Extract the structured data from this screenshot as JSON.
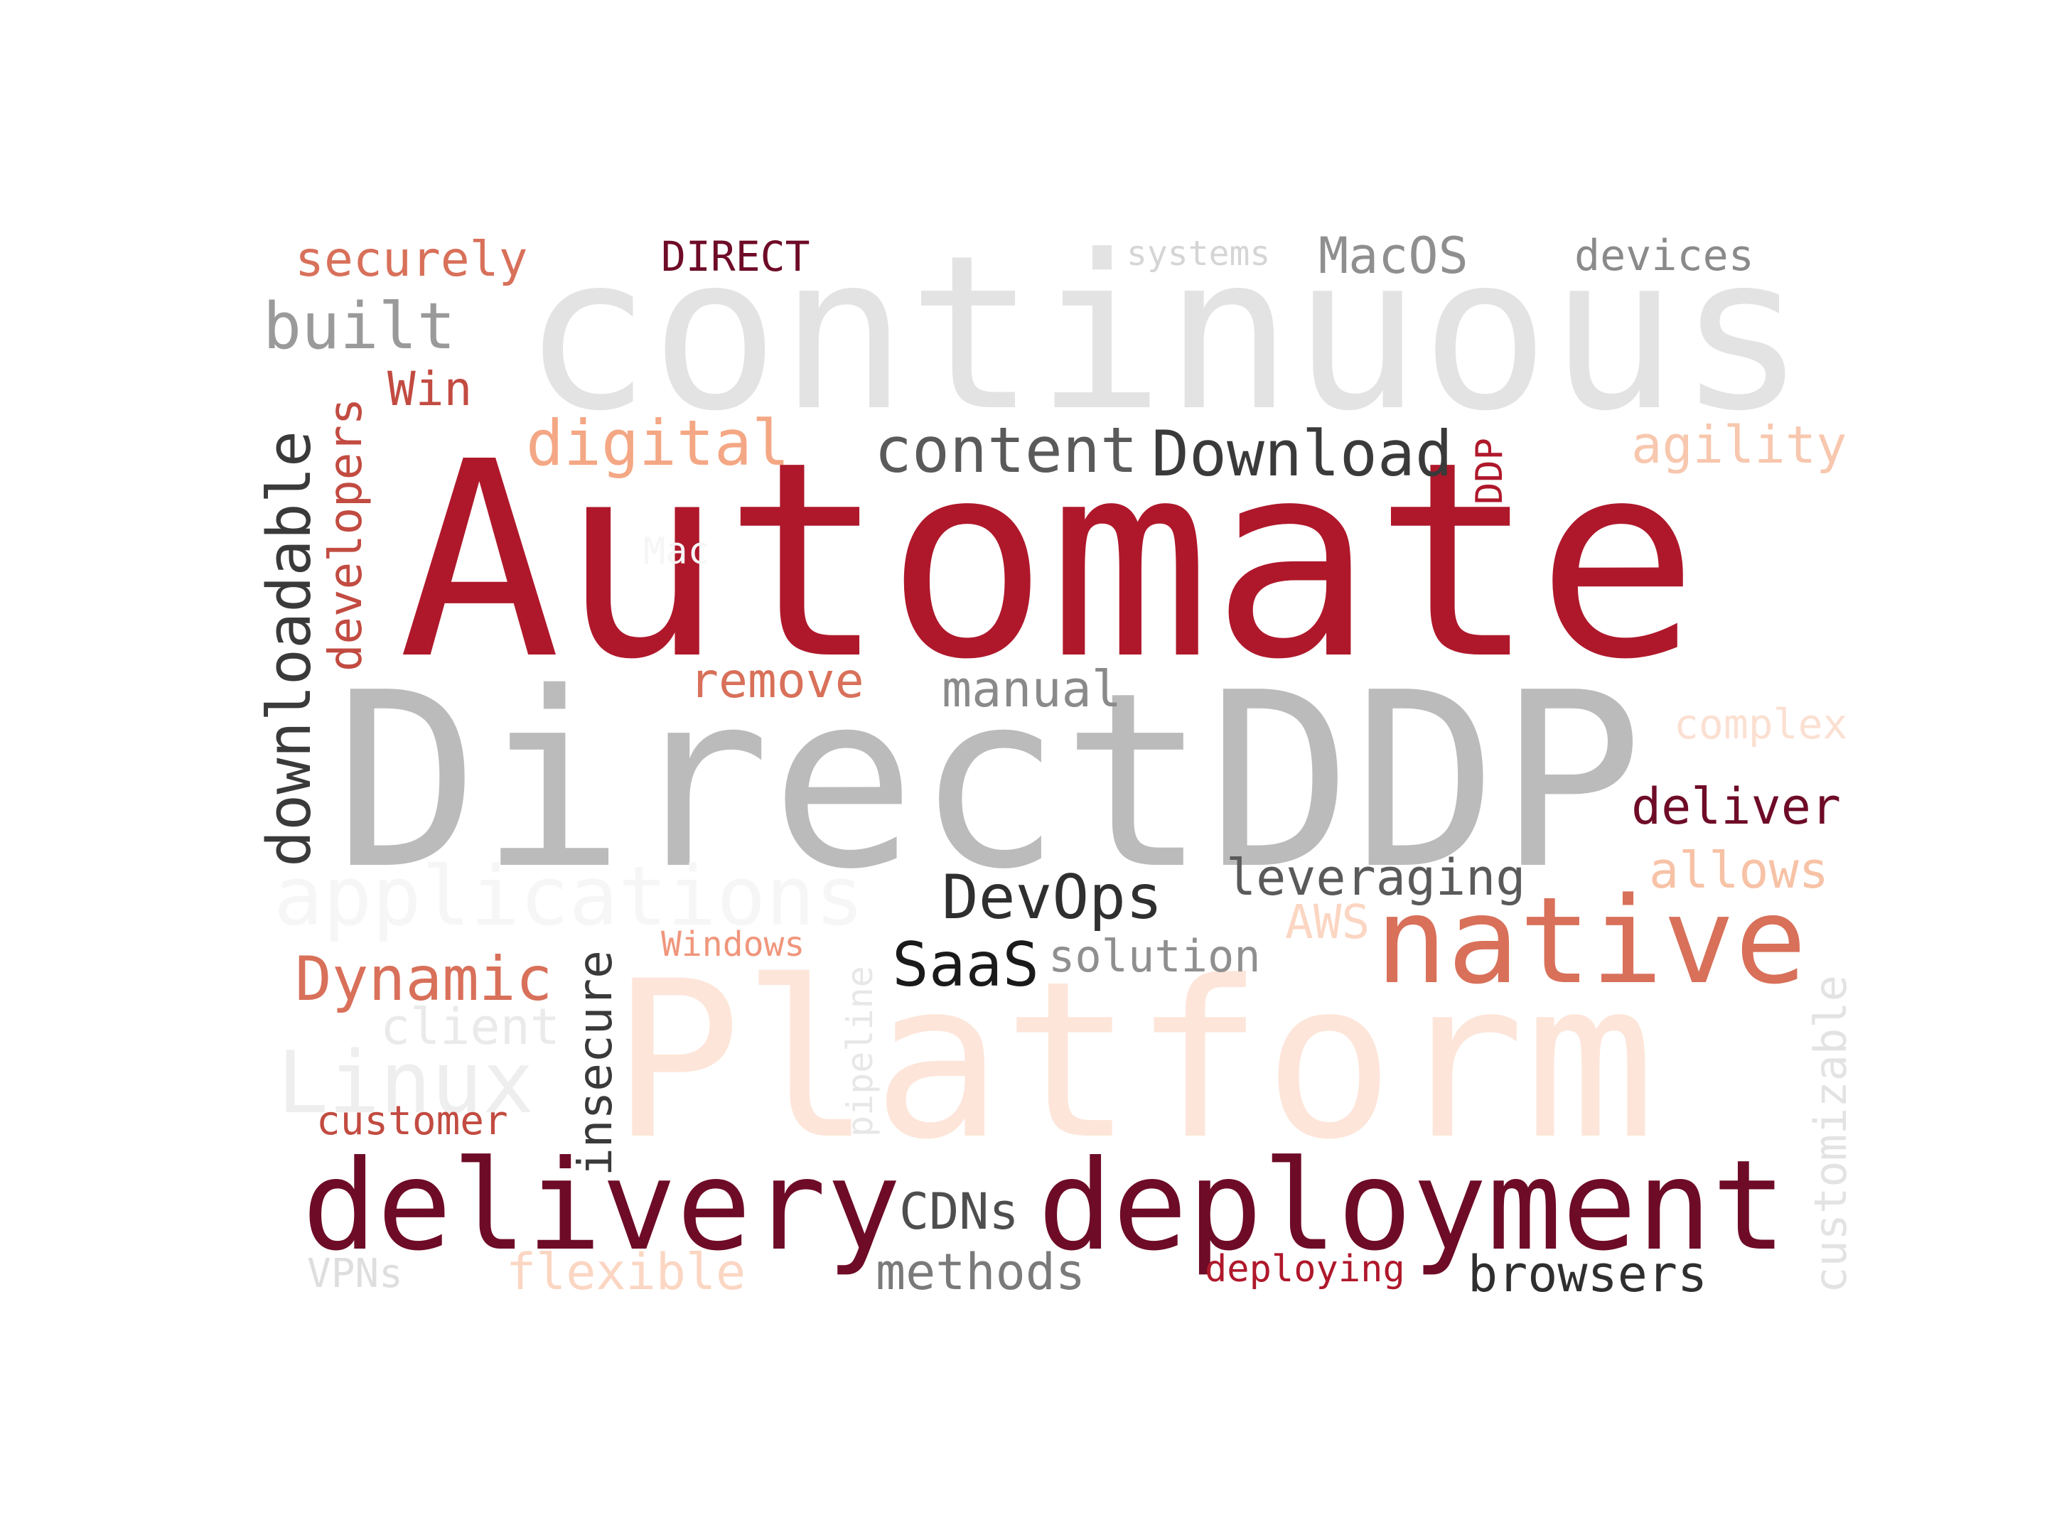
{
  "words": [
    {
      "text": "continuous",
      "color": "#e3e3e3"
    },
    {
      "text": "Automate",
      "color": "#af182b"
    },
    {
      "text": "DirectDDP",
      "color": "#bbbbbb"
    },
    {
      "text": "Platform",
      "color": "#fde5d9"
    },
    {
      "text": "native",
      "color": "#d8705a"
    },
    {
      "text": "delivery",
      "color": "#6e0b27"
    },
    {
      "text": "deployment",
      "color": "#6e0b27"
    },
    {
      "text": "applications",
      "color": "#f6f6f6"
    },
    {
      "text": "downloadable",
      "color": "#3a3a3a"
    },
    {
      "text": "securely",
      "color": "#d8705a"
    },
    {
      "text": "DIRECT",
      "color": "#6e0b27"
    },
    {
      "text": "systems",
      "color": "#d5d5d5"
    },
    {
      "text": "MacOS",
      "color": "#8f8f8f"
    },
    {
      "text": "devices",
      "color": "#8a8a8a"
    },
    {
      "text": "built",
      "color": "#9a9a9a"
    },
    {
      "text": "Win",
      "color": "#c24b41"
    },
    {
      "text": "developers",
      "color": "#c24b41"
    },
    {
      "text": "digital",
      "color": "#f4a784"
    },
    {
      "text": "content",
      "color": "#5a5a5a"
    },
    {
      "text": "Download",
      "color": "#3a3a3a"
    },
    {
      "text": "DDP",
      "color": "#af182b"
    },
    {
      "text": "agility",
      "color": "#f7c7ae"
    },
    {
      "text": "Mac",
      "color": "#f6f6f6"
    },
    {
      "text": "remove",
      "color": "#d8705a"
    },
    {
      "text": "manual",
      "color": "#8a8a8a"
    },
    {
      "text": "complex",
      "color": "#fbe0d2"
    },
    {
      "text": "deliver",
      "color": "#6e0b27"
    },
    {
      "text": "allows",
      "color": "#f7c2a6"
    },
    {
      "text": "leveraging",
      "color": "#5a5a5a"
    },
    {
      "text": "DevOps",
      "color": "#2f2f2f"
    },
    {
      "text": "AWS",
      "color": "#fbd6c2"
    },
    {
      "text": "Windows",
      "color": "#f0967c"
    },
    {
      "text": "SaaS",
      "color": "#1a1a1a"
    },
    {
      "text": "solution",
      "color": "#8f8f8f"
    },
    {
      "text": "pipeline",
      "color": "#e7e7e7"
    },
    {
      "text": "insecure",
      "color": "#3a3a3a"
    },
    {
      "text": "Dynamic",
      "color": "#d8705a"
    },
    {
      "text": "client",
      "color": "#eaeaea"
    },
    {
      "text": "Linux",
      "color": "#eeeeee"
    },
    {
      "text": "customer",
      "color": "#c24b41"
    },
    {
      "text": "customizable",
      "color": "#e3e3e3"
    },
    {
      "text": "CDNs",
      "color": "#4e4e4e"
    },
    {
      "text": "VPNs",
      "color": "#dedede"
    },
    {
      "text": "flexible",
      "color": "#fbd6c2"
    },
    {
      "text": "methods",
      "color": "#7a7a7a"
    },
    {
      "text": "deploying",
      "color": "#af182b"
    },
    {
      "text": "browsers",
      "color": "#2f2f2f"
    }
  ]
}
